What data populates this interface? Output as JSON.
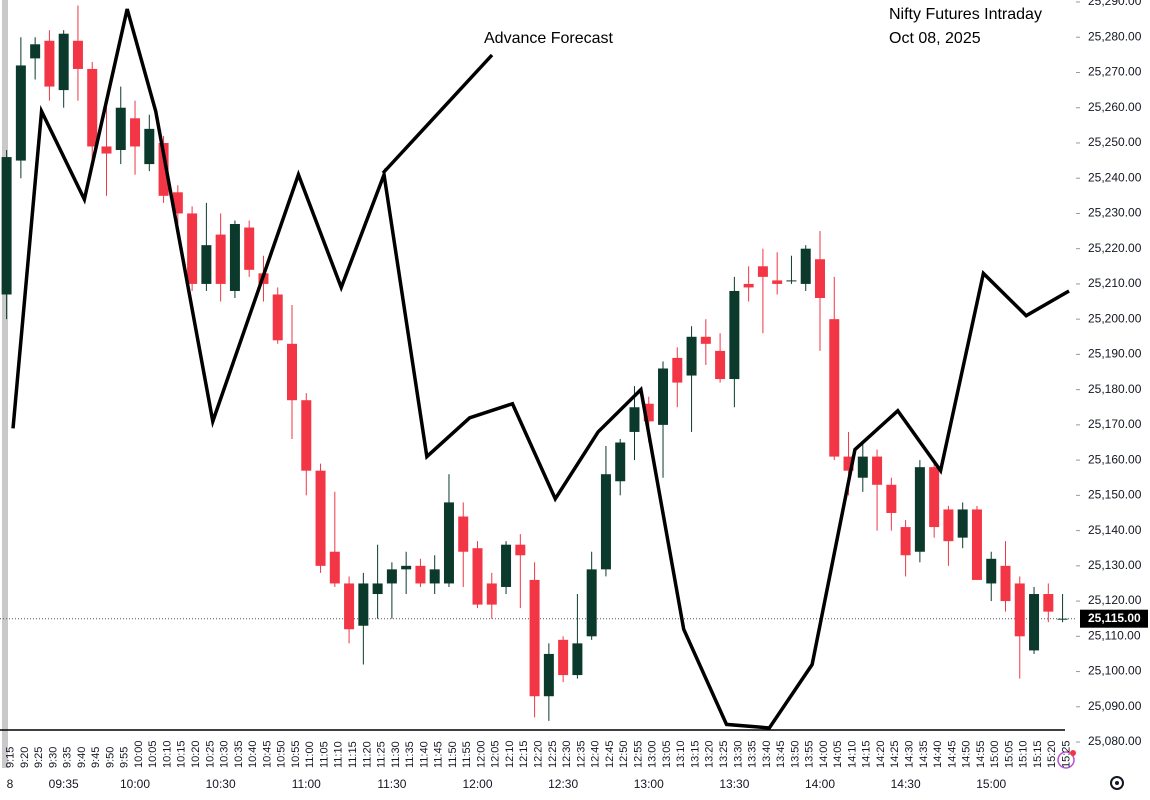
{
  "chart_data": {
    "type": "candlestick",
    "title": "Nifty Futures Intraday",
    "subtitle": "Oct 08, 2025",
    "annotation": "Advance Forecast",
    "up_color": "#0b3a2c",
    "down_color": "#f23645",
    "categories": [
      "9:15",
      "9:20",
      "9:25",
      "9:30",
      "9:35",
      "9:40",
      "9:45",
      "9:50",
      "9:55",
      "10:00",
      "10:05",
      "10:10",
      "10:15",
      "10:20",
      "10:25",
      "10:30",
      "10:35",
      "10:40",
      "10:45",
      "10:50",
      "10:55",
      "11:00",
      "11:05",
      "11:10",
      "11:15",
      "11:20",
      "11:25",
      "11:30",
      "11:35",
      "11:40",
      "11:45",
      "11:50",
      "11:55",
      "12:00",
      "12:05",
      "12:10",
      "12:15",
      "12:20",
      "12:25",
      "12:30",
      "12:35",
      "12:40",
      "12:45",
      "12:50",
      "12:55",
      "13:00",
      "13:05",
      "13:10",
      "13:15",
      "13:20",
      "13:25",
      "13:30",
      "13:35",
      "13:40",
      "13:45",
      "13:50",
      "13:55",
      "14:00",
      "14:05",
      "14:10",
      "14:15",
      "14:20",
      "14:25",
      "14:30",
      "14:35",
      "14:40",
      "14:45",
      "14:50",
      "14:55",
      "15:00",
      "15:05",
      "15:10",
      "15:15",
      "15:20",
      "15:25"
    ],
    "time_labels": [
      "8",
      "09:35",
      "10:00",
      "10:30",
      "11:00",
      "11:30",
      "12:00",
      "12:30",
      "13:00",
      "13:30",
      "14:00",
      "14:30",
      "15:00"
    ],
    "open": [
      25207,
      25245,
      25274,
      25279,
      25265,
      25279,
      25271,
      25249,
      25248,
      25257,
      25244,
      25250,
      25236,
      25230,
      25210,
      25224,
      25208,
      25226,
      25213,
      25207,
      25193,
      25177,
      25157,
      25134,
      25125,
      25113,
      25122,
      25125,
      25129,
      25130,
      25125,
      25125,
      25144,
      25135,
      25125,
      25124,
      25136,
      25126,
      25093,
      25109,
      25099,
      25110,
      25129,
      25154,
      25168,
      25176,
      25170,
      25189,
      25184,
      25195,
      25191,
      25183,
      25210,
      25215,
      25211,
      25211,
      25210,
      25217,
      25200,
      25161,
      25155,
      25161,
      25153,
      25141,
      25134,
      25158,
      25146,
      25138,
      25146,
      25125,
      25130,
      25125,
      25106,
      25122,
      25115
    ],
    "high": [
      25248,
      25280,
      25280,
      25282,
      25282,
      25289,
      25273,
      25260,
      25266,
      25262,
      25258,
      25252,
      25238,
      25232,
      25233,
      25230,
      25228,
      25228,
      25218,
      25209,
      25204,
      25179,
      25159,
      25151,
      25127,
      25128,
      25136,
      25131,
      25134,
      25132,
      25133,
      25156,
      25148,
      25137,
      25128,
      25137,
      25139,
      25131,
      25108,
      25110,
      25122,
      25134,
      25164,
      25166,
      25181,
      25178,
      25188,
      25192,
      25198,
      25200,
      25196,
      25212,
      25215,
      25220,
      25219,
      25218,
      25221,
      25225,
      25212,
      25168,
      25165,
      25163,
      25155,
      25143,
      25160,
      25160,
      25147,
      25148,
      25147,
      25134,
      25137,
      25127,
      25124,
      25125,
      25122
    ],
    "low": [
      25200,
      25240,
      25268,
      25262,
      25260,
      25262,
      25245,
      25235,
      25244,
      25241,
      25242,
      25233,
      25227,
      25208,
      25208,
      25205,
      25206,
      25212,
      25205,
      25193,
      25166,
      25150,
      25128,
      25124,
      25108,
      25102,
      25115,
      25115,
      25122,
      25124,
      25122,
      25124,
      25124,
      25118,
      25115,
      25122,
      25118,
      25087,
      25086,
      25097,
      25098,
      25109,
      25127,
      25150,
      25160,
      25165,
      25155,
      25175,
      25168,
      25187,
      25182,
      25175,
      25205,
      25196,
      25207,
      25210,
      25208,
      25191,
      25160,
      25150,
      25151,
      25140,
      25140,
      25127,
      25131,
      25138,
      25130,
      25135,
      25126,
      25120,
      25117,
      25098,
      25105,
      25114,
      25114
    ],
    "close": [
      25246,
      25272,
      25278,
      25266,
      25281,
      25271,
      25249,
      25247,
      25260,
      25249,
      25254,
      25235,
      25230,
      25210,
      25221,
      25210,
      25227,
      25214,
      25210,
      25194,
      25177,
      25157,
      25130,
      25125,
      25112,
      25125,
      25125,
      25129,
      25130,
      25125,
      25129,
      25148,
      25134,
      25119,
      25119,
      25136,
      25133,
      25093,
      25105,
      25099,
      25108,
      25129,
      25156,
      25165,
      25175,
      25171,
      25186,
      25182,
      25195,
      25193,
      25183,
      25208,
      25209,
      25212,
      25210,
      25211,
      25220,
      25206,
      25161,
      25157,
      25161,
      25153,
      25145,
      25133,
      25158,
      25141,
      25137,
      25146,
      25126,
      25132,
      25120,
      25110,
      25122,
      25117,
      25115
    ],
    "forecast": {
      "color": "#000000",
      "x": [
        "9:15",
        "9:25",
        "9:40",
        "9:55",
        "10:05",
        "10:25",
        "10:55",
        "11:10",
        "11:25",
        "11:40",
        "11:55",
        "12:10",
        "12:25",
        "12:40",
        "12:55",
        "13:10",
        "13:25",
        "13:40",
        "13:55",
        "14:10",
        "14:25",
        "14:40",
        "14:55",
        "15:10",
        "15:25"
      ],
      "values": [
        25169,
        25259,
        25234,
        25288,
        25259,
        25171,
        25241,
        25209,
        25241,
        25161,
        25172,
        25176,
        25149,
        25168,
        25180,
        25112,
        25085,
        25084,
        25102,
        25163,
        25174,
        25157,
        25213,
        25201,
        25208
      ]
    },
    "last_price": {
      "value": 25115,
      "label": "25,115.00"
    },
    "ylim": [
      25073,
      25290
    ],
    "yticks": [
      {
        "value": 25080,
        "label": "25,080.00"
      },
      {
        "value": 25090,
        "label": "25,090.00"
      },
      {
        "value": 25100,
        "label": "25,100.00"
      },
      {
        "value": 25110,
        "label": "25,110.00"
      },
      {
        "value": 25120,
        "label": "25,120.00"
      },
      {
        "value": 25130,
        "label": "25,130.00"
      },
      {
        "value": 25140,
        "label": "25,140.00"
      },
      {
        "value": 25150,
        "label": "25,150.00"
      },
      {
        "value": 25160,
        "label": "25,160.00"
      },
      {
        "value": 25170,
        "label": "25,170.00"
      },
      {
        "value": 25180,
        "label": "25,180.00"
      },
      {
        "value": 25190,
        "label": "25,190.00"
      },
      {
        "value": 25200,
        "label": "25,200.00"
      },
      {
        "value": 25210,
        "label": "25,210.00"
      },
      {
        "value": 25220,
        "label": "25,220.00"
      },
      {
        "value": 25230,
        "label": "25,230.00"
      },
      {
        "value": 25240,
        "label": "25,240.00"
      },
      {
        "value": 25250,
        "label": "25,250.00"
      },
      {
        "value": 25260,
        "label": "25,260.00"
      },
      {
        "value": 25270,
        "label": "25,270.00"
      },
      {
        "value": 25280,
        "label": "25,280.00"
      },
      {
        "value": 25290,
        "label": "25,290.00"
      }
    ]
  }
}
